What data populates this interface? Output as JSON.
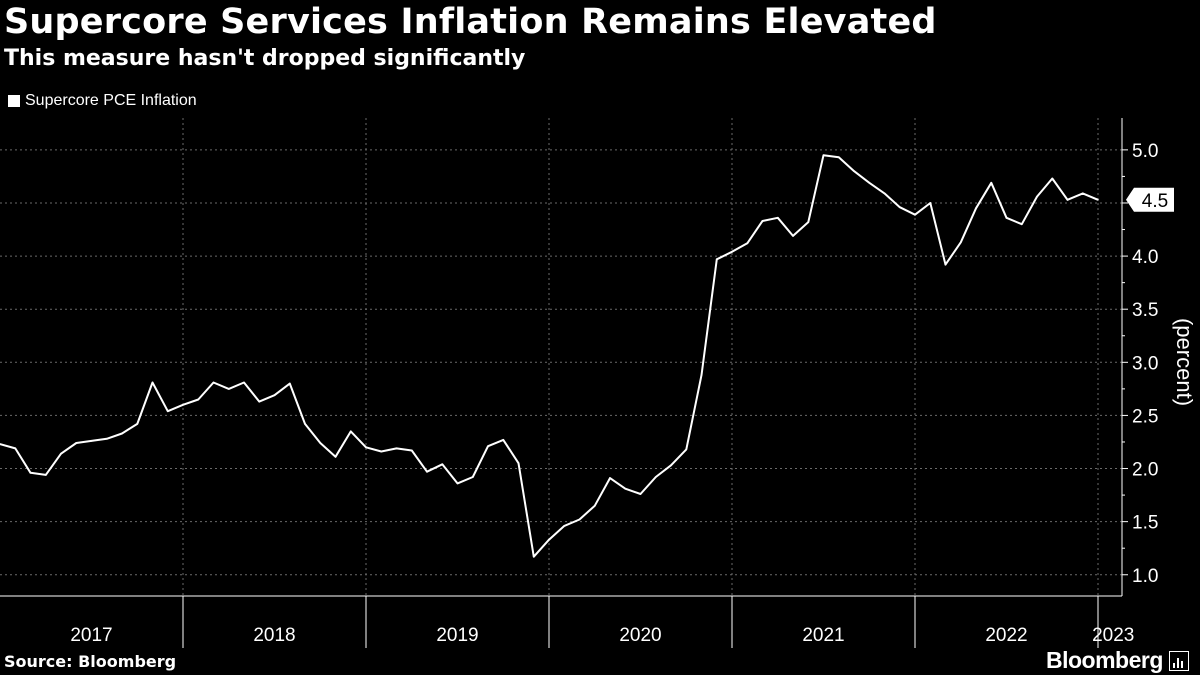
{
  "title": "Supercore Services Inflation Remains Elevated",
  "subtitle": "This measure hasn't dropped significantly",
  "legend": {
    "label": "Supercore PCE Inflation"
  },
  "source": "Source: Bloomberg",
  "brand": "Bloomberg",
  "colors": {
    "background": "#000000",
    "line": "#ffffff",
    "grid": "#6a6a6a",
    "text": "#ffffff"
  },
  "chart_data": {
    "type": "line",
    "title": "Supercore Services Inflation Remains Elevated",
    "subtitle": "This measure hasn't dropped significantly",
    "xlabel": "",
    "ylabel": "(percent)",
    "ylim": [
      0.8,
      5.3
    ],
    "yticks": [
      "1.0",
      "1.5",
      "2.0",
      "2.5",
      "3.0",
      "3.5",
      "4.0",
      "4.5",
      "5.0"
    ],
    "x_start": "2017-01",
    "x_end": "2023-05",
    "year_labels": [
      "2017",
      "2018",
      "2019",
      "2020",
      "2021",
      "2022",
      "2023"
    ],
    "last_value_label": "4.5",
    "grid": true,
    "legend_position": "top-left",
    "series": [
      {
        "name": "Supercore PCE Inflation",
        "values": [
          2.23,
          2.19,
          1.96,
          1.94,
          2.14,
          2.24,
          2.26,
          2.28,
          2.33,
          2.42,
          2.81,
          2.54,
          2.6,
          2.65,
          2.81,
          2.75,
          2.81,
          2.63,
          2.69,
          2.8,
          2.42,
          2.24,
          2.11,
          2.35,
          2.2,
          2.16,
          2.19,
          2.17,
          1.97,
          2.04,
          1.86,
          1.92,
          2.21,
          2.27,
          2.05,
          1.17,
          1.33,
          1.46,
          1.52,
          1.65,
          1.91,
          1.81,
          1.76,
          1.92,
          2.03,
          2.18,
          2.88,
          3.97,
          4.04,
          4.12,
          4.33,
          4.36,
          4.19,
          4.32,
          4.95,
          4.93,
          4.8,
          4.69,
          4.59,
          4.46,
          4.39,
          4.5,
          3.92,
          4.13,
          4.45,
          4.69,
          4.36,
          4.3,
          4.56,
          4.73,
          4.53,
          4.59,
          4.53
        ]
      }
    ]
  }
}
